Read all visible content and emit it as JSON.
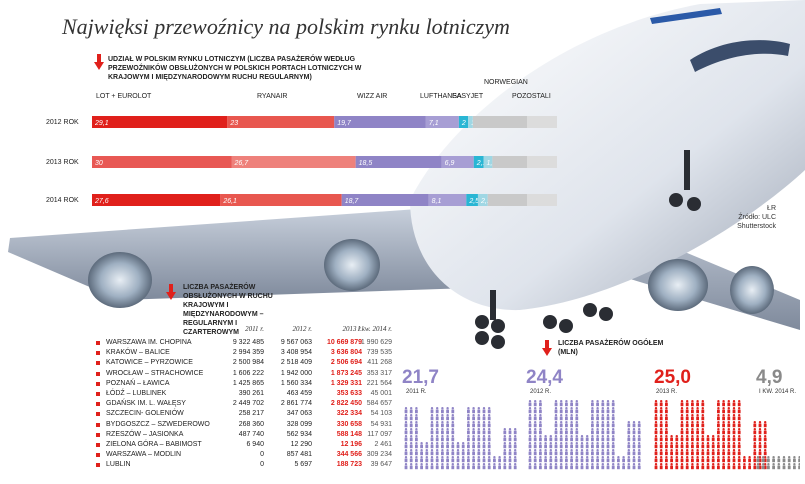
{
  "title": "Najwięksi przewoźnicy na polskim rynku lotniczym",
  "share_note": "Udział w polskim rynku lotniczym (liczba pasażerów według przewoźników obsłużonych w polskich portach lotniczych w krajowym i międzynarodowym ruchu regularnym)",
  "table_note": "Liczba pasażerów obsłużonych w ruchu krajowym i międzynarodowym – regularnym i czarterowym",
  "totals_note": "Liczba pasażerów ogółem (mln)",
  "credits": {
    "line1": "ŁR",
    "line2": "Źródło: ULC",
    "line3": "Shutterstock"
  },
  "colors": {
    "accent": "#e0201b",
    "lot": "#e0201b",
    "ryanair": "#e8574f",
    "wizz": "#8f84c6",
    "lufthansa": "#a79ed4",
    "easyjet": "#29b6d4",
    "norwegian": "#9fd7e4",
    "pozostali": "#c9c9c9",
    "totals_purple": "#8f84c6",
    "totals_red": "#e0201b",
    "totals_gray": "#8a8a8a"
  },
  "chart_data": [
    {
      "type": "bar",
      "orientation": "horizontal-stacked",
      "title": "Udział w polskim rynku lotniczym",
      "unit": "%",
      "categories": [
        "2012 ROK",
        "2013 ROK",
        "2014 ROK"
      ],
      "series": [
        {
          "name": "LOT + EUROLOT",
          "labels": [
            "29,1",
            "30",
            "27,6"
          ],
          "values": [
            29.1,
            30.0,
            27.6
          ]
        },
        {
          "name": "RYANAIR",
          "labels": [
            "23",
            "26,7",
            "26,1"
          ],
          "values": [
            23.0,
            26.7,
            26.1
          ]
        },
        {
          "name": "WIZZ AIR",
          "labels": [
            "19,7",
            "18,5",
            "18,7"
          ],
          "values": [
            19.7,
            18.5,
            18.7
          ]
        },
        {
          "name": "LUFTHANSA",
          "labels": [
            "7,1",
            "6,9",
            "8,1"
          ],
          "values": [
            7.1,
            6.9,
            8.1
          ]
        },
        {
          "name": "EASYJET",
          "labels": [
            "2",
            "2,1",
            "2,5"
          ],
          "values": [
            2.0,
            2.1,
            2.5
          ]
        },
        {
          "name": "NORWEGIAN",
          "labels": [
            "1",
            "1,9",
            "2,1"
          ],
          "values": [
            1.0,
            1.9,
            2.1
          ]
        },
        {
          "name": "POZOSTALI",
          "labels": [
            "",
            "",
            ""
          ],
          "values": [
            18.1,
            13.9,
            14.9
          ]
        }
      ]
    },
    {
      "type": "table",
      "title": "Liczba pasażerów obsłużonych w ruchu krajowym i międzynarodowym – regularnym i czarterowym",
      "columns": [
        "2011 r.",
        "2012 r.",
        "2013 r.",
        "I kw. 2014 r."
      ],
      "rows": [
        {
          "city": "Warszawa im. Chopina",
          "v": [
            "9 322 485",
            "9 567 063",
            "10 669 879",
            "1 990 629"
          ]
        },
        {
          "city": "Kraków – Balice",
          "v": [
            "2 994 359",
            "3 408 954",
            "3 636 804",
            "739 535"
          ]
        },
        {
          "city": "Katowice – Pyrzowice",
          "v": [
            "2 500 984",
            "2 518 409",
            "2 506 694",
            "411 268"
          ]
        },
        {
          "city": "Wrocław – Strachowice",
          "v": [
            "1 606 222",
            "1 942 000",
            "1 873 245",
            "353 317"
          ]
        },
        {
          "city": "Poznań – Ławica",
          "v": [
            "1 425 865",
            "1 560 334",
            "1 329 331",
            "221 564"
          ]
        },
        {
          "city": "Łódź – Lublinek",
          "v": [
            "390 261",
            "463 459",
            "353 633",
            "45 001"
          ]
        },
        {
          "city": "Gdańsk im. L. Wałęsy",
          "v": [
            "2 449 702",
            "2 861 774",
            "2 822 450",
            "584 657"
          ]
        },
        {
          "city": "Szczecin- Goleniów",
          "v": [
            "258 217",
            "347 063",
            "322 334",
            "54 103"
          ]
        },
        {
          "city": "Bydgoszcz – Szwederowo",
          "v": [
            "268 360",
            "328 099",
            "330 658",
            "54 931"
          ]
        },
        {
          "city": "Rzeszów – Jasionka",
          "v": [
            "487 740",
            "562 934",
            "588 148",
            "117 097"
          ]
        },
        {
          "city": "Zielona Góra – Babimost",
          "v": [
            "6 940",
            "12 290",
            "12 196",
            "2 461"
          ]
        },
        {
          "city": "Warszawa – Modlin",
          "v": [
            "0",
            "857 481",
            "344 566",
            "309 234"
          ]
        },
        {
          "city": "Lublin",
          "v": [
            "0",
            "5 697",
            "188 723",
            "39 647"
          ]
        }
      ]
    },
    {
      "type": "bar",
      "title": "Liczba pasażerów ogółem (mln)",
      "unit": "mln",
      "categories": [
        "2011 R.",
        "2012 R.",
        "2013 R.",
        "I KW. 2014 R."
      ],
      "labels": [
        "21,7",
        "24,4",
        "25,0",
        "4,9"
      ],
      "values": [
        21.7,
        24.4,
        25.0,
        4.9
      ]
    }
  ]
}
